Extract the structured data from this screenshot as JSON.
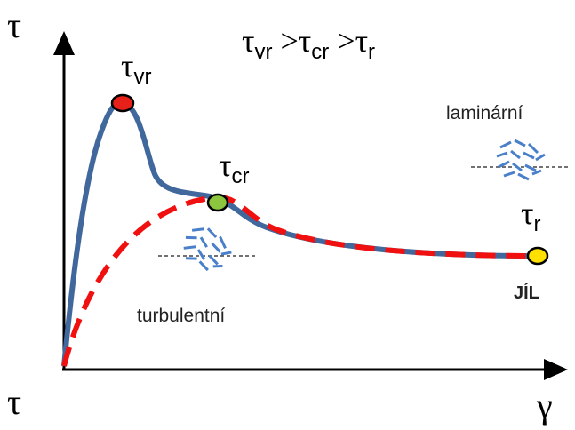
{
  "axes": {
    "y_label": "τ",
    "origin_label": "τ",
    "x_label": "γ"
  },
  "relation": {
    "parts": [
      {
        "symbol": "τ",
        "sub": "vr"
      },
      {
        "op": ">"
      },
      {
        "symbol": "τ",
        "sub": "cr"
      },
      {
        "op": ">"
      },
      {
        "symbol": "τ",
        "sub": "r"
      }
    ]
  },
  "points": [
    {
      "symbol": "τ",
      "sub": "vr"
    },
    {
      "symbol": "τ",
      "sub": "cr"
    },
    {
      "symbol": "τ",
      "sub": "r"
    }
  ],
  "regions": {
    "laminar": "laminární",
    "turbulent": "turbulentní"
  },
  "material": "JÍL"
}
